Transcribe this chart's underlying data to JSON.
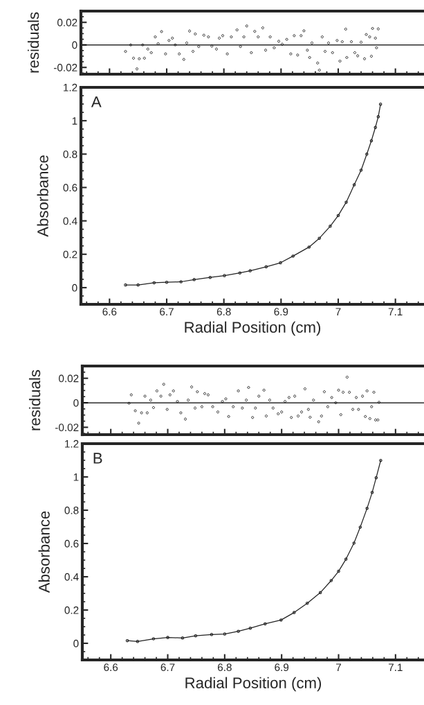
{
  "chart_data": [
    {
      "type": "scatter",
      "ylabel": "residuals",
      "xlim": [
        6.55,
        7.15
      ],
      "ylim": [
        -0.026,
        0.03
      ],
      "tick_labels": "y",
      "marker": "circle",
      "grid": false,
      "xticks": [
        {
          "value": 6.6,
          "label": null
        },
        {
          "value": 6.7,
          "label": null
        },
        {
          "value": 6.8,
          "label": null
        },
        {
          "value": 6.9,
          "label": null
        },
        {
          "value": 7,
          "label": null
        },
        {
          "value": 7.1,
          "label": null
        }
      ],
      "yticks": [
        -0.02,
        0,
        0.02
      ],
      "ref_lines": [
        {
          "axis": "y",
          "value": 0,
          "color": "#000000"
        }
      ],
      "series": [
        {
          "color": "#222222",
          "x": [
            6.628,
            6.637,
            6.642,
            6.648,
            6.652,
            6.658,
            6.661,
            6.667,
            6.673,
            6.68,
            6.685,
            6.691,
            6.698,
            6.704,
            6.71,
            6.715,
            6.722,
            6.73,
            6.735,
            6.74,
            6.746,
            6.75,
            6.756,
            6.765,
            6.773,
            6.779,
            6.787,
            6.792,
            6.798,
            6.806,
            6.813,
            6.823,
            6.829,
            6.835,
            6.84,
            6.848,
            6.854,
            6.86,
            6.868,
            6.873,
            6.881,
            6.888,
            6.896,
            6.902,
            6.91,
            6.917,
            6.923,
            6.929,
            6.935,
            6.94,
            6.946,
            6.95,
            6.954,
            6.964,
            6.967,
            6.972,
            6.977,
            6.983,
            6.99,
            6.998,
            7.003,
            7.007,
            7.013,
            7.015,
            7.023,
            7.029,
            7.034,
            7.04,
            7.046,
            7.049,
            7.055,
            7.058,
            7.06,
            7.065,
            7.067,
            7.07
          ],
          "values": [
            -0.0058,
            0,
            -0.0118,
            -0.0213,
            -0.0123,
            0,
            -0.0118,
            -0.0037,
            -0.0069,
            0.0071,
            0.0011,
            0.0118,
            -0.008,
            0.0039,
            0.006,
            0,
            -0.008,
            -0.0129,
            0.0017,
            0.0123,
            -0.0058,
            0.0097,
            -0.0015,
            0.0086,
            0.0071,
            -0.0011,
            -0.0037,
            0.006,
            0.0082,
            -0.008,
            0.0071,
            0.0133,
            -0.0015,
            0.0071,
            0.0168,
            -0.0069,
            0.012,
            0.0071,
            0.0151,
            -0.0047,
            0.0071,
            -0.0026,
            0.0032,
            0.0006,
            0.0049,
            -0.008,
            0.0082,
            -0.009,
            0.0082,
            0.0125,
            -0.0047,
            -0.0112,
            0.0017,
            -0.0161,
            -0.0224,
            0.0071,
            -0.0058,
            0.0017,
            -0.0069,
            0.0039,
            -0.0144,
            0.0028,
            0.014,
            -0.0112,
            0.0028,
            -0.0069,
            -0.0097,
            0.0024,
            -0.0123,
            0.0092,
            0.0071,
            -0.0101,
            0.0146,
            0.006,
            -0.0026,
            0.0142
          ]
        }
      ]
    },
    {
      "type": "line",
      "xlabel": "Radial Position (cm)",
      "ylabel": "Absorbance",
      "xlim": [
        6.55,
        7.15
      ],
      "ylim": [
        -0.1,
        1.2
      ],
      "marker": "circle",
      "line_style": "solid",
      "grid": false,
      "xticks": [
        6.6,
        6.7,
        6.8,
        6.9,
        7,
        7.1
      ],
      "yticks": [
        0,
        0.2,
        0.4,
        0.6,
        0.8,
        1,
        1.2
      ],
      "annotations": [
        "A"
      ],
      "series": [
        {
          "color": "#222222",
          "x": [
            6.628,
            6.65,
            6.678,
            6.7,
            6.725,
            6.748,
            6.776,
            6.801,
            6.828,
            6.846,
            6.874,
            6.899,
            6.921,
            6.949,
            6.967,
            6.986,
            7.0,
            7.014,
            7.028,
            7.04,
            7.05,
            7.058,
            7.065,
            7.07,
            7.074
          ],
          "values": [
            0.016,
            0.016,
            0.029,
            0.032,
            0.035,
            0.048,
            0.061,
            0.072,
            0.088,
            0.101,
            0.125,
            0.149,
            0.189,
            0.243,
            0.296,
            0.368,
            0.432,
            0.512,
            0.616,
            0.704,
            0.8,
            0.88,
            0.96,
            1.024,
            1.099
          ]
        }
      ]
    },
    {
      "type": "scatter",
      "ylabel": "residuals",
      "xlim": [
        6.55,
        7.15
      ],
      "ylim": [
        -0.026,
        0.03
      ],
      "tick_labels": "y",
      "marker": "circle",
      "grid": false,
      "xticks": [
        {
          "value": 6.6,
          "label": null
        },
        {
          "value": 6.7,
          "label": null
        },
        {
          "value": 6.8,
          "label": null
        },
        {
          "value": 6.9,
          "label": null
        },
        {
          "value": 7,
          "label": null
        },
        {
          "value": 7.1,
          "label": null
        }
      ],
      "yticks": [
        -0.02,
        0,
        0.02
      ],
      "ref_lines": [
        {
          "axis": "y",
          "value": 0,
          "color": "#000000"
        }
      ],
      "series": [
        {
          "color": "#222222",
          "x": [
            6.632,
            6.636,
            6.643,
            6.649,
            6.654,
            6.66,
            6.664,
            6.67,
            6.675,
            6.681,
            6.688,
            6.693,
            6.699,
            6.704,
            6.71,
            6.717,
            6.723,
            6.731,
            6.736,
            6.742,
            6.748,
            6.752,
            6.76,
            6.765,
            6.771,
            6.779,
            6.788,
            6.796,
            6.802,
            6.807,
            6.815,
            6.824,
            6.831,
            6.838,
            6.842,
            6.849,
            6.854,
            6.86,
            6.869,
            6.873,
            6.879,
            6.885,
            6.894,
            6.9,
            6.906,
            6.913,
            6.917,
            6.923,
            6.929,
            6.935,
            6.941,
            6.947,
            6.95,
            6.956,
            6.965,
            6.97,
            6.975,
            6.981,
            6.988,
            6.995,
            7.0,
            7.004,
            7.008,
            7.015,
            7.019,
            7.025,
            7.031,
            7.035,
            7.042,
            7.047,
            7.05,
            7.055,
            7.058,
            7.062,
            7.065,
            7.069,
            7.071
          ],
          "values": [
            -0.0004,
            0.0065,
            -0.0065,
            -0.0166,
            -0.0082,
            0.0054,
            -0.0082,
            0.0022,
            -0.0039,
            0.0097,
            0.0054,
            0.0151,
            -0.0054,
            0.0065,
            0.0097,
            0.0011,
            -0.0082,
            -0.0133,
            0.0022,
            0.0129,
            -0.0043,
            0.009,
            -0.0032,
            0.0075,
            0.0065,
            -0.0032,
            -0.0075,
            0.0011,
            0.0032,
            -0.0112,
            -0.0032,
            0.0097,
            -0.0043,
            0.0022,
            0.0125,
            -0.012,
            -0.0043,
            0.0054,
            0.0103,
            -0.0108,
            0.0022,
            -0.0043,
            -0.009,
            -0.0075,
            0.0011,
            0.0043,
            -0.012,
            0.0054,
            -0.0108,
            -0.0075,
            0.0114,
            -0.0054,
            -0.0118,
            0.0022,
            -0.0155,
            -0.0108,
            0.009,
            -0.0032,
            0.0043,
            0,
            0.0103,
            -0.0097,
            0.0086,
            0.0209,
            0.0086,
            -0.0054,
            0.0043,
            -0.0054,
            0.0054,
            -0.0112,
            0.0097,
            -0.0129,
            -0.0032,
            0.0086,
            -0.014,
            -0.014,
            0.0004
          ]
        }
      ]
    },
    {
      "type": "line",
      "xlabel": "Radial Position (cm)",
      "ylabel": "Absorbance",
      "xlim": [
        6.55,
        7.15
      ],
      "ylim": [
        -0.1,
        1.2
      ],
      "marker": "circle",
      "line_style": "solid",
      "grid": false,
      "xticks": [
        6.6,
        6.7,
        6.8,
        6.9,
        7,
        7.1
      ],
      "yticks": [
        0,
        0.2,
        0.4,
        0.6,
        0.8,
        1,
        1.2
      ],
      "annotations": [
        "B"
      ],
      "series": [
        {
          "color": "#222222",
          "x": [
            6.629,
            6.647,
            6.675,
            6.7,
            6.726,
            6.749,
            6.777,
            6.8,
            6.824,
            6.845,
            6.871,
            6.899,
            6.922,
            6.945,
            6.968,
            6.987,
            7.0,
            7.013,
            7.027,
            7.038,
            7.05,
            7.059,
            7.066,
            7.074
          ],
          "values": [
            0.016,
            0.011,
            0.027,
            0.035,
            0.032,
            0.045,
            0.053,
            0.056,
            0.072,
            0.091,
            0.117,
            0.14,
            0.185,
            0.241,
            0.305,
            0.377,
            0.433,
            0.506,
            0.602,
            0.698,
            0.811,
            0.907,
            0.995,
            1.099
          ]
        }
      ]
    }
  ]
}
